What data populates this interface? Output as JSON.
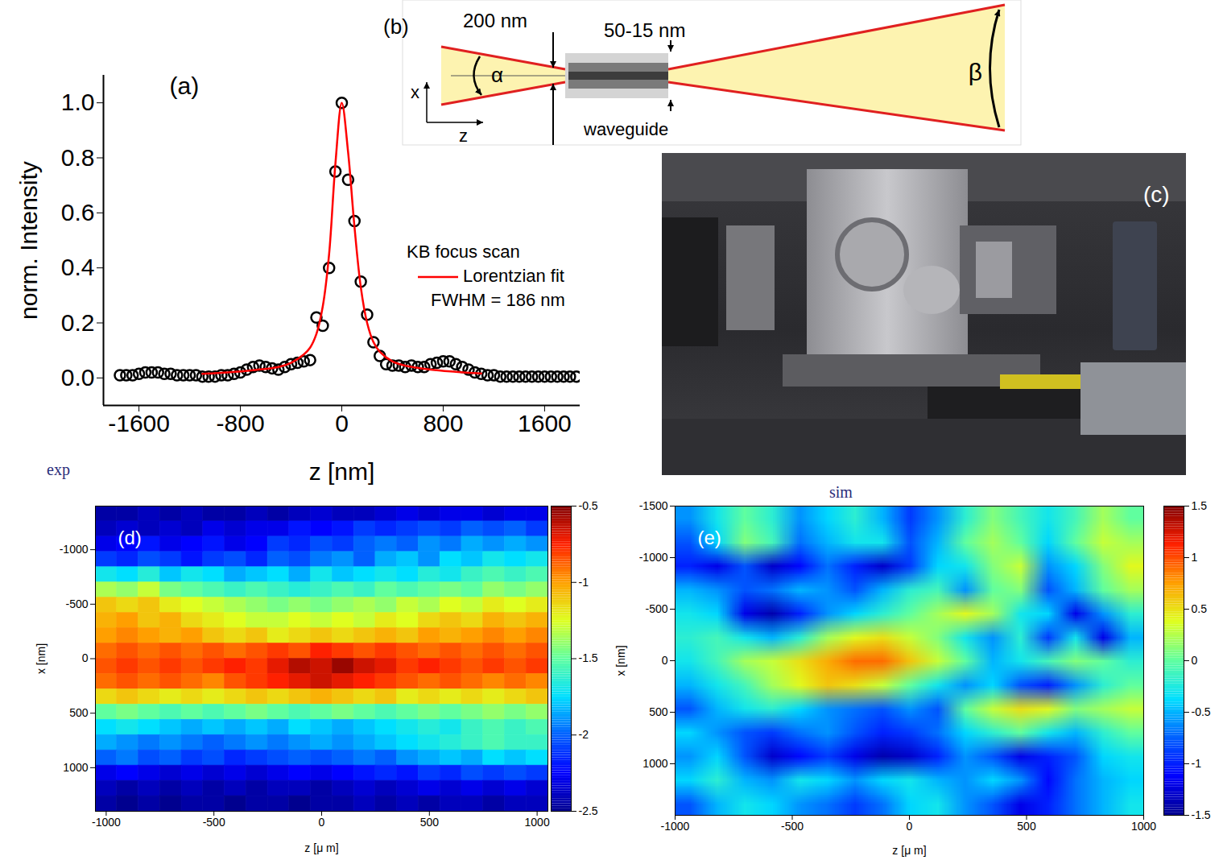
{
  "chart_data": [
    {
      "type": "line",
      "panel_label": "(a)",
      "x_label": "z [nm]",
      "y_label": "norm. Intensity",
      "xlim": [
        -1880,
        1880
      ],
      "xticks": [
        -1600,
        -800,
        0,
        800,
        1600
      ],
      "ylim": [
        -0.1,
        1.1
      ],
      "yticks": [
        {
          "value": 0,
          "label": "0.0"
        },
        0.2,
        0.4,
        0.6,
        0.8,
        {
          "value": 1,
          "label": "1.0"
        }
      ],
      "legend": "right",
      "series": [
        {
          "name": "KB focus scan",
          "type": "scatter",
          "marker": "circle",
          "color": "#000000",
          "x": [
            -1750,
            -1700,
            -1650,
            -1600,
            -1550,
            -1500,
            -1450,
            -1400,
            -1350,
            -1300,
            -1250,
            -1200,
            -1150,
            -1100,
            -1050,
            -1000,
            -950,
            -900,
            -850,
            -800,
            -750,
            -700,
            -650,
            -600,
            -550,
            -500,
            -450,
            -400,
            -350,
            -300,
            -250,
            -200,
            -150,
            -100,
            -50,
            0,
            50,
            100,
            150,
            200,
            250,
            300,
            350,
            400,
            450,
            500,
            550,
            600,
            650,
            700,
            750,
            800,
            850,
            900,
            950,
            1000,
            1050,
            1100,
            1150,
            1200,
            1250,
            1300,
            1350,
            1400,
            1450,
            1500,
            1550,
            1600,
            1650,
            1700,
            1750,
            1800,
            1850
          ],
          "values": [
            0.01,
            0.01,
            0.01,
            0.015,
            0.02,
            0.02,
            0.02,
            0.015,
            0.015,
            0.01,
            0.01,
            0.01,
            0.01,
            0.005,
            0.005,
            0.005,
            0.01,
            0.01,
            0.015,
            0.02,
            0.03,
            0.04,
            0.045,
            0.04,
            0.035,
            0.03,
            0.04,
            0.05,
            0.055,
            0.06,
            0.065,
            0.22,
            0.19,
            0.4,
            0.75,
            1.0,
            0.72,
            0.57,
            0.35,
            0.23,
            0.13,
            0.08,
            0.05,
            0.045,
            0.045,
            0.04,
            0.045,
            0.04,
            0.04,
            0.05,
            0.055,
            0.06,
            0.06,
            0.05,
            0.04,
            0.03,
            0.02,
            0.015,
            0.01,
            0.01,
            0.005,
            0.005,
            0.005,
            0.005,
            0.005,
            0.005,
            0.005,
            0.005,
            0.005,
            0.005,
            0.005,
            0.005,
            0.005
          ]
        },
        {
          "name": "Lorentzian fit",
          "type": "line",
          "color": "#ff0000",
          "x": [
            -1100,
            -900,
            -700,
            -500,
            -400,
            -300,
            -250,
            -200,
            -150,
            -100,
            -50,
            0,
            50,
            100,
            150,
            200,
            250,
            300,
            400,
            500,
            700,
            900,
            1100
          ],
          "values": [
            0.015,
            0.02,
            0.028,
            0.04,
            0.055,
            0.085,
            0.11,
            0.16,
            0.26,
            0.45,
            0.78,
            1.0,
            0.82,
            0.55,
            0.33,
            0.2,
            0.13,
            0.095,
            0.06,
            0.045,
            0.03,
            0.022,
            0.016
          ]
        }
      ],
      "annotations": [
        "FWHM = 186 nm"
      ]
    },
    {
      "type": "heatmap",
      "title": "exp",
      "panel_label": "(d)",
      "x_label": "z [μ m]",
      "y_label": "x [nm]",
      "xlim": [
        -1050,
        1050
      ],
      "xticks": [
        -1000,
        -500,
        0,
        500,
        1000
      ],
      "ylim": [
        1400,
        -1400
      ],
      "yticks": [
        -1000,
        -500,
        0,
        500,
        1000
      ],
      "color": "jet",
      "cells": [
        [
          -2.45,
          -2.45,
          -2.4,
          -2.45,
          -2.4,
          -2.45,
          -2.45,
          -2.4,
          -2.45,
          -2.4,
          -2.35,
          -2.4,
          -2.4,
          -2.35,
          -2.3,
          -2.35,
          -2.3,
          -2.3,
          -2.35,
          -2.3,
          -2.3
        ],
        [
          -2.4,
          -2.35,
          -2.4,
          -2.35,
          -2.4,
          -2.3,
          -2.35,
          -2.3,
          -2.3,
          -2.2,
          -2.25,
          -2.2,
          -2.1,
          -2.15,
          -2.1,
          -2.05,
          -2.1,
          -2.0,
          -2.05,
          -2.0,
          -2.1
        ],
        [
          -2.3,
          -2.25,
          -2.2,
          -2.3,
          -2.25,
          -2.2,
          -2.3,
          -2.25,
          -2.1,
          -2.15,
          -2.05,
          -2.1,
          -2.0,
          -1.95,
          -2.0,
          -1.9,
          -1.95,
          -1.85,
          -1.9,
          -1.85,
          -1.9
        ],
        [
          -2.1,
          -2.15,
          -2.05,
          -2.1,
          -2.2,
          -2.1,
          -2.05,
          -2.15,
          -2.0,
          -2.05,
          -1.95,
          -1.9,
          -2.0,
          -1.85,
          -1.8,
          -1.9,
          -1.75,
          -1.8,
          -1.7,
          -1.75,
          -1.7
        ],
        [
          -1.7,
          -1.75,
          -1.65,
          -1.8,
          -1.7,
          -1.75,
          -1.85,
          -1.8,
          -1.75,
          -1.85,
          -1.7,
          -1.8,
          -1.75,
          -1.7,
          -1.75,
          -1.65,
          -1.7,
          -1.6,
          -1.55,
          -1.6,
          -1.55
        ],
        [
          -1.35,
          -1.4,
          -1.3,
          -1.45,
          -1.5,
          -1.55,
          -1.6,
          -1.55,
          -1.6,
          -1.65,
          -1.6,
          -1.55,
          -1.6,
          -1.5,
          -1.55,
          -1.5,
          -1.45,
          -1.5,
          -1.4,
          -1.45,
          -1.4
        ],
        [
          -1.1,
          -1.15,
          -1.1,
          -1.2,
          -1.25,
          -1.3,
          -1.35,
          -1.4,
          -1.45,
          -1.4,
          -1.45,
          -1.4,
          -1.35,
          -1.4,
          -1.3,
          -1.35,
          -1.25,
          -1.3,
          -1.2,
          -1.25,
          -1.2
        ],
        [
          -1.05,
          -1.0,
          -1.1,
          -1.05,
          -1.15,
          -1.2,
          -1.25,
          -1.3,
          -1.3,
          -1.25,
          -1.3,
          -1.25,
          -1.3,
          -1.2,
          -1.25,
          -1.15,
          -1.1,
          -1.15,
          -1.05,
          -1.1,
          -1.05
        ],
        [
          -1.0,
          -0.95,
          -1.0,
          -1.05,
          -1.0,
          -1.1,
          -1.15,
          -1.1,
          -1.2,
          -1.15,
          -1.1,
          -1.15,
          -1.1,
          -1.05,
          -1.1,
          -1.0,
          -1.05,
          -1.0,
          -0.95,
          -1.0,
          -0.95
        ],
        [
          -0.9,
          -0.85,
          -0.9,
          -0.85,
          -0.9,
          -0.85,
          -0.9,
          -0.85,
          -0.8,
          -0.85,
          -0.75,
          -0.8,
          -0.85,
          -0.8,
          -0.85,
          -0.9,
          -0.85,
          -0.9,
          -0.85,
          -0.9,
          -0.85
        ],
        [
          -0.85,
          -0.8,
          -0.85,
          -0.8,
          -0.85,
          -0.8,
          -0.75,
          -0.8,
          -0.7,
          -0.6,
          -0.65,
          -0.55,
          -0.65,
          -0.7,
          -0.8,
          -0.75,
          -0.8,
          -0.85,
          -0.8,
          -0.85,
          -0.8
        ],
        [
          -0.9,
          -0.85,
          -0.9,
          -0.85,
          -0.9,
          -0.95,
          -0.85,
          -0.8,
          -0.75,
          -0.7,
          -0.65,
          -0.7,
          -0.75,
          -0.8,
          -0.85,
          -0.9,
          -0.85,
          -0.9,
          -0.95,
          -0.9,
          -0.95
        ],
        [
          -1.15,
          -1.1,
          -1.15,
          -1.2,
          -1.15,
          -1.2,
          -1.15,
          -1.1,
          -1.15,
          -1.1,
          -1.05,
          -1.1,
          -1.15,
          -1.1,
          -1.2,
          -1.15,
          -1.2,
          -1.15,
          -1.2,
          -1.15,
          -1.1
        ],
        [
          -1.5,
          -1.45,
          -1.5,
          -1.55,
          -1.5,
          -1.55,
          -1.5,
          -1.45,
          -1.5,
          -1.55,
          -1.5,
          -1.45,
          -1.5,
          -1.55,
          -1.5,
          -1.45,
          -1.5,
          -1.45,
          -1.4,
          -1.45,
          -1.4
        ],
        [
          -1.75,
          -1.7,
          -1.75,
          -1.8,
          -1.85,
          -1.8,
          -1.85,
          -1.8,
          -1.85,
          -1.75,
          -1.8,
          -1.85,
          -1.8,
          -1.75,
          -1.7,
          -1.65,
          -1.7,
          -1.6,
          -1.55,
          -1.6,
          -1.55
        ],
        [
          -1.85,
          -1.9,
          -1.95,
          -1.9,
          -1.95,
          -2.0,
          -1.95,
          -1.9,
          -1.95,
          -1.9,
          -1.85,
          -1.9,
          -1.85,
          -1.8,
          -1.75,
          -1.7,
          -1.65,
          -1.6,
          -1.55,
          -1.6,
          -1.6
        ],
        [
          -2.0,
          -1.95,
          -2.05,
          -2.0,
          -2.1,
          -2.05,
          -2.15,
          -2.1,
          -2.05,
          -2.0,
          -2.05,
          -2.0,
          -1.95,
          -2.0,
          -1.9,
          -1.85,
          -1.8,
          -1.85,
          -1.75,
          -1.8,
          -1.75
        ],
        [
          -2.3,
          -2.25,
          -2.3,
          -2.35,
          -2.3,
          -2.35,
          -2.3,
          -2.35,
          -2.3,
          -2.25,
          -2.3,
          -2.25,
          -2.2,
          -2.15,
          -2.2,
          -2.1,
          -2.15,
          -2.05,
          -2.1,
          -2.05,
          -2.1
        ],
        [
          -2.4,
          -2.45,
          -2.4,
          -2.45,
          -2.4,
          -2.45,
          -2.4,
          -2.45,
          -2.4,
          -2.4,
          -2.45,
          -2.4,
          -2.35,
          -2.4,
          -2.35,
          -2.3,
          -2.35,
          -2.3,
          -2.35,
          -2.3,
          -2.35
        ],
        [
          -2.45,
          -2.5,
          -2.45,
          -2.5,
          -2.45,
          -2.45,
          -2.5,
          -2.45,
          -2.45,
          -2.5,
          -2.45,
          -2.45,
          -2.4,
          -2.45,
          -2.4,
          -2.45,
          -2.4,
          -2.4,
          -2.45,
          -2.4,
          -2.4
        ]
      ],
      "colorbar": {
        "range": [
          -2.5,
          -0.5
        ],
        "ticks": [
          -0.5,
          -1,
          -1.5,
          -2,
          -2.5
        ]
      }
    },
    {
      "type": "raster",
      "title": "sim",
      "panel_label": "(e)",
      "x_label": "z [μ m]",
      "y_label": "x [nm]",
      "xlim": [
        -1000,
        1000
      ],
      "xticks": [
        -1000,
        -500,
        0,
        500,
        1000
      ],
      "ylim": [
        1500,
        -1500
      ],
      "yticks": [
        -1500,
        -1000,
        -500,
        0,
        500,
        1000
      ],
      "color": "jet",
      "cells": [
        [
          -0.6,
          -0.3,
          0.0,
          -0.2,
          -0.6,
          -0.4,
          -0.2,
          -0.5,
          -0.9,
          -0.6,
          -0.2,
          0.1,
          -0.1,
          -0.3,
          -0.1,
          0.2,
          0.0
        ],
        [
          -0.8,
          -0.4,
          0.1,
          -0.1,
          -0.7,
          -0.5,
          -0.3,
          -0.3,
          -0.8,
          -0.5,
          0.0,
          0.2,
          0.0,
          -0.4,
          0.0,
          0.3,
          0.2
        ],
        [
          -1.0,
          -1.2,
          -0.8,
          -1.3,
          -1.1,
          -0.7,
          -1.0,
          -1.3,
          -0.9,
          -0.4,
          -0.3,
          0.1,
          0.3,
          -0.6,
          -0.4,
          0.1,
          0.4
        ],
        [
          -0.5,
          -0.6,
          -0.8,
          -0.7,
          -0.5,
          -0.6,
          -0.8,
          -0.5,
          -0.2,
          -0.1,
          -0.6,
          0.0,
          0.1,
          -0.8,
          -0.5,
          0.0,
          0.2
        ],
        [
          -0.3,
          -0.4,
          -1.2,
          -1.4,
          -1.0,
          -0.6,
          -0.4,
          -0.2,
          0.0,
          0.2,
          0.4,
          0.2,
          -0.3,
          -0.4,
          -1.2,
          -0.6,
          -0.2
        ],
        [
          -0.2,
          -0.1,
          -0.3,
          -0.5,
          -0.2,
          0.2,
          0.4,
          0.5,
          0.3,
          0.1,
          -0.3,
          -0.6,
          -0.2,
          -0.9,
          -0.3,
          -1.2,
          -0.5
        ],
        [
          -0.3,
          -0.1,
          0.2,
          0.3,
          0.5,
          0.7,
          0.9,
          0.9,
          0.6,
          0.3,
          0.0,
          -0.5,
          -0.3,
          -0.1,
          0.1,
          0.0,
          -0.2
        ],
        [
          -0.5,
          -0.3,
          -0.1,
          0.2,
          0.4,
          0.6,
          0.5,
          0.3,
          0.0,
          -0.3,
          -0.6,
          -0.4,
          -0.8,
          -1.0,
          -0.6,
          -0.2,
          0.0
        ],
        [
          -0.8,
          -0.5,
          -0.3,
          -0.2,
          -0.4,
          -0.6,
          -0.7,
          -0.8,
          -0.6,
          -0.8,
          0.0,
          0.3,
          0.5,
          0.4,
          0.1,
          0.2,
          0.3
        ],
        [
          -0.4,
          -0.6,
          -0.8,
          -0.9,
          -0.7,
          -0.6,
          -0.8,
          -1.0,
          -0.9,
          -0.7,
          -0.4,
          -0.2,
          0.0,
          -0.3,
          -0.5,
          -0.2,
          0.0
        ],
        [
          -0.6,
          -0.4,
          -0.8,
          -1.3,
          -1.1,
          -0.9,
          -1.2,
          -1.4,
          -1.3,
          -1.0,
          -0.6,
          -0.8,
          -1.2,
          -1.0,
          -0.8,
          -0.4,
          -0.3
        ],
        [
          -0.4,
          -0.2,
          -0.5,
          -0.6,
          -0.3,
          -0.4,
          -0.6,
          -0.4,
          -0.3,
          -0.5,
          -0.6,
          -0.4,
          -0.6,
          -1.1,
          -0.7,
          -0.5,
          -0.4
        ],
        [
          -0.8,
          -0.5,
          -0.3,
          -0.4,
          -0.6,
          -0.7,
          -0.9,
          -0.7,
          -0.4,
          -0.3,
          -0.6,
          -0.8,
          -1.2,
          -1.0,
          -0.7,
          -0.5,
          -0.3
        ]
      ],
      "colorbar": {
        "range": [
          -1.5,
          1.5
        ],
        "ticks": [
          1.5,
          1,
          0.5,
          0,
          -0.5,
          -1,
          -1.5
        ]
      }
    }
  ],
  "diagram": {
    "label": "(b)",
    "texts": {
      "entrance_size": "200 nm",
      "guide_size": "50-15 nm",
      "angle_in": "α",
      "angle_out": "β",
      "axis_x": "x",
      "axis_z": "z",
      "waveguide": "waveguide"
    }
  },
  "photo": {
    "label": "(c)"
  }
}
